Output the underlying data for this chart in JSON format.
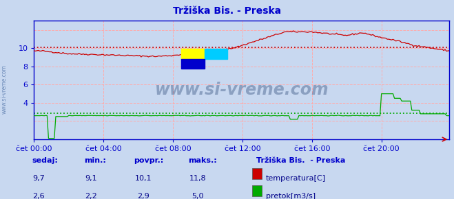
{
  "title": "Tržiška Bis. - Preska",
  "title_color": "#0000cc",
  "bg_color": "#c8d8f0",
  "plot_bg_color": "#c8d8f0",
  "grid_color": "#ffaaaa",
  "border_color": "#2222bb",
  "tick_color": "#0000cc",
  "temp_color": "#cc0000",
  "flow_color": "#00aa00",
  "avg_temp_color": "#cc0000",
  "avg_flow_color": "#00aa00",
  "xlim": [
    0,
    287
  ],
  "ylim": [
    0,
    13
  ],
  "yticks": [
    2,
    4,
    6,
    8,
    10,
    12
  ],
  "ytick_labels": [
    "",
    "4",
    "6",
    "8",
    "10",
    ""
  ],
  "xtick_positions": [
    0,
    48,
    96,
    144,
    192,
    240
  ],
  "xtick_labels": [
    "čet 00:00",
    "čet 04:00",
    "čet 08:00",
    "čet 12:00",
    "čet 16:00",
    "čet 20:00"
  ],
  "avg_temp": 10.1,
  "avg_flow": 2.9,
  "legend_title": "Tržiška Bis.  - Preska",
  "legend_items": [
    "temperatura[C]",
    "pretok[m3/s]"
  ],
  "legend_colors": [
    "#cc0000",
    "#00aa00"
  ],
  "info_color": "#0000cc",
  "value_color": "#000088",
  "sedaj_label": "sedaj:",
  "min_label": "min.:",
  "povpr_label": "povpr.:",
  "maks_label": "maks.:",
  "temp_sedaj": "9,7",
  "temp_min": "9,1",
  "temp_povpr": "10,1",
  "temp_maks": "11,8",
  "flow_sedaj": "2,6",
  "flow_min": "2,2",
  "flow_povpr": "2,9",
  "flow_maks": "5,0",
  "watermark": "www.si-vreme.com",
  "watermark_color": "#1a3a6a",
  "left_label": "www.si-vreme.com"
}
